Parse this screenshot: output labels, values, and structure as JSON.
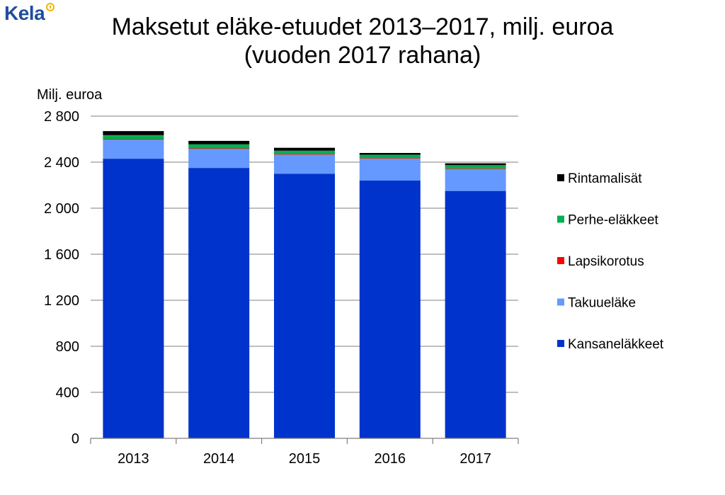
{
  "logo": {
    "text": "Kela",
    "color": "#1f4e9b",
    "accent": "#f2b400"
  },
  "chart_data": {
    "type": "bar",
    "stacked": true,
    "title": "Maksetut eläke-etuudet 2013–2017, milj. euroa",
    "subtitle": "(vuoden 2017 rahana)",
    "ylabel": "Milj. euroa",
    "xlabel": "",
    "ylim": [
      0,
      2800
    ],
    "yticks": [
      0,
      400,
      800,
      1200,
      1600,
      2000,
      2400,
      2800
    ],
    "ytick_labels": [
      "0",
      "400",
      "800",
      "1 200",
      "1 600",
      "2 000",
      "2 400",
      "2 800"
    ],
    "grid": true,
    "legend_position": "right",
    "categories": [
      "2013",
      "2014",
      "2015",
      "2016",
      "2017"
    ],
    "series": [
      {
        "name": "Kansaneläkkeet",
        "color": "#0033cc",
        "values": [
          2430,
          2350,
          2300,
          2240,
          2150
        ]
      },
      {
        "name": "Takuueläke",
        "color": "#6699ff",
        "values": [
          165,
          165,
          165,
          190,
          190
        ]
      },
      {
        "name": "Lapsikorotus",
        "color": "#ff0000",
        "values": [
          5,
          5,
          5,
          5,
          5
        ]
      },
      {
        "name": "Perhe-eläkkeet",
        "color": "#00b050",
        "values": [
          35,
          35,
          30,
          30,
          30
        ]
      },
      {
        "name": "Rintamalisät",
        "color": "#000000",
        "values": [
          35,
          30,
          25,
          15,
          15
        ]
      }
    ],
    "legend_order": [
      "Rintamalisät",
      "Perhe-eläkkeet",
      "Lapsikorotus",
      "Takuueläke",
      "Kansaneläkkeet"
    ]
  }
}
